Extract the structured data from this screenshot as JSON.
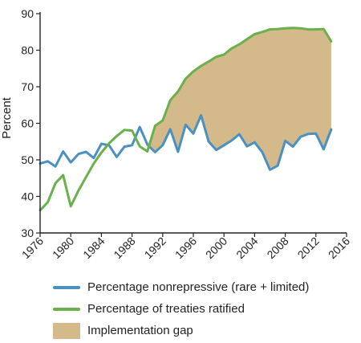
{
  "chart_data": {
    "type": "line",
    "ylabel": "Percent",
    "xlabel": "",
    "title": "",
    "xlim": [
      1976,
      2016
    ],
    "ylim": [
      30,
      90
    ],
    "xticks": [
      1976,
      1980,
      1984,
      1988,
      1992,
      1996,
      2000,
      2004,
      2008,
      2012,
      2016
    ],
    "yticks": [
      30,
      40,
      50,
      60,
      70,
      80,
      90
    ],
    "x": [
      1976,
      1977,
      1978,
      1979,
      1980,
      1981,
      1982,
      1983,
      1984,
      1985,
      1986,
      1987,
      1988,
      1989,
      1990,
      1991,
      1992,
      1993,
      1994,
      1995,
      1996,
      1997,
      1998,
      1999,
      2000,
      2001,
      2002,
      2003,
      2004,
      2005,
      2006,
      2007,
      2008,
      2009,
      2010,
      2011,
      2012,
      2013,
      2014
    ],
    "series": [
      {
        "name": "Percentage nonrepressive (rare + limited)",
        "color": "#4a90c0",
        "values": [
          49,
          49.6,
          48.2,
          52.3,
          49.3,
          51.6,
          52.2,
          50.5,
          54.4,
          54,
          50.8,
          53.6,
          54,
          59,
          54.2,
          52.1,
          54,
          58.4,
          52.2,
          59.6,
          57.2,
          62.2,
          55,
          52.7,
          54,
          55.3,
          57,
          53.7,
          54.8,
          52.1,
          47.3,
          48.4,
          55.2,
          53.6,
          56.3,
          57.1,
          57.2,
          52.9,
          58.3
        ]
      },
      {
        "name": "Percentage of treaties ratified",
        "color": "#6ab04c",
        "values": [
          36.2,
          38.4,
          43.6,
          45.8,
          37.3,
          41.6,
          45.3,
          49,
          52,
          54.5,
          56.5,
          58.2,
          58,
          53.7,
          52.3,
          59.3,
          60.8,
          66.3,
          68.7,
          72.2,
          74.2,
          75.7,
          76.9,
          78.2,
          78.8,
          80.5,
          81.6,
          83,
          84.4,
          85,
          85.7,
          85.8,
          86,
          86.1,
          86,
          85.7,
          85.7,
          85.8,
          82.4
        ]
      }
    ],
    "gap": {
      "name": "Implementation gap",
      "color": "#d4b98a",
      "from_year": 1990
    }
  }
}
